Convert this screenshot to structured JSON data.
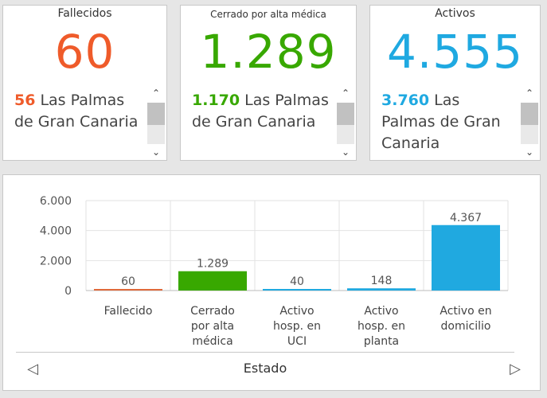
{
  "cards": [
    {
      "title": "Fallecidos",
      "value": "60",
      "color": "#ef5b2a",
      "detail_num": "56",
      "detail_text": "Las Palmas de Gran Canaria"
    },
    {
      "title": "Cerrado por alta médica",
      "value": "1.289",
      "color": "#38a800",
      "detail_num": "1.170",
      "detail_text": "Las Palmas de Gran Canaria"
    },
    {
      "title": "Activos",
      "value": "4.555",
      "color": "#1fa9e1",
      "detail_num": "3.760",
      "detail_text": "Las Palmas de Gran Canaria"
    }
  ],
  "scroll_icons": {
    "up": "chevron-up-icon",
    "down": "chevron-down-icon"
  },
  "chart_data": {
    "type": "bar",
    "categories": [
      "Fallecido",
      "Cerrado\npor alta\nmédica",
      "Activo\nhosp. en\nUCI",
      "Activo\nhosp. en\nplanta",
      "Activo en\ndomicilio"
    ],
    "values": [
      60,
      1289,
      40,
      148,
      4367
    ],
    "value_labels": [
      "60",
      "1.289",
      "40",
      "148",
      "4.367"
    ],
    "colors": [
      "#e06a3b",
      "#38a800",
      "#20a9e0",
      "#20a9e0",
      "#20a9e0"
    ],
    "yticks": [
      0,
      2000,
      4000,
      6000
    ],
    "ytick_labels": [
      "0",
      "2.000",
      "4.000",
      "6.000"
    ],
    "ylim": [
      0,
      6000
    ],
    "xlabel": "Estado",
    "grid": true
  },
  "nav": {
    "left": "◁",
    "right": "▷"
  }
}
